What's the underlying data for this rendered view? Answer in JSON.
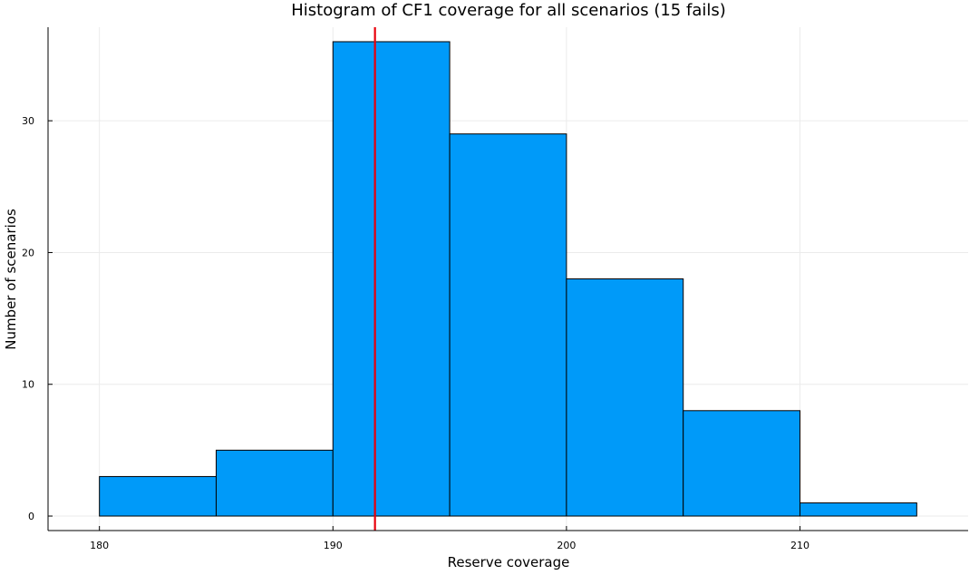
{
  "chart_data": {
    "type": "bar",
    "title": "Histogram of CF1 coverage for all scenarios (15 fails)",
    "xlabel": "Reserve coverage",
    "ylabel": "Number of scenarios",
    "bins": [
      {
        "start": 180,
        "end": 185,
        "count": 3
      },
      {
        "start": 185,
        "end": 190,
        "count": 5
      },
      {
        "start": 190,
        "end": 195,
        "count": 36
      },
      {
        "start": 195,
        "end": 200,
        "count": 29
      },
      {
        "start": 200,
        "end": 205,
        "count": 18
      },
      {
        "start": 205,
        "end": 210,
        "count": 8
      },
      {
        "start": 210,
        "end": 215,
        "count": 1
      }
    ],
    "reference_line": {
      "x": 191.8,
      "color": "#e8000b"
    },
    "xlim": [
      177.8,
      217.2
    ],
    "ylim": [
      -1.1,
      37.1
    ],
    "xticks": [
      {
        "value": 180,
        "label": "180"
      },
      {
        "value": 190,
        "label": "190"
      },
      {
        "value": 200,
        "label": "200"
      },
      {
        "value": 210,
        "label": "210"
      }
    ],
    "yticks": [
      {
        "value": 0,
        "label": "0"
      },
      {
        "value": 10,
        "label": "10"
      },
      {
        "value": 20,
        "label": "20"
      },
      {
        "value": 30,
        "label": "30"
      }
    ],
    "grid": true,
    "legend": "none",
    "bar_color": "#009af9",
    "bar_edge_color": "#000000",
    "grid_color": "#ebebeb"
  }
}
